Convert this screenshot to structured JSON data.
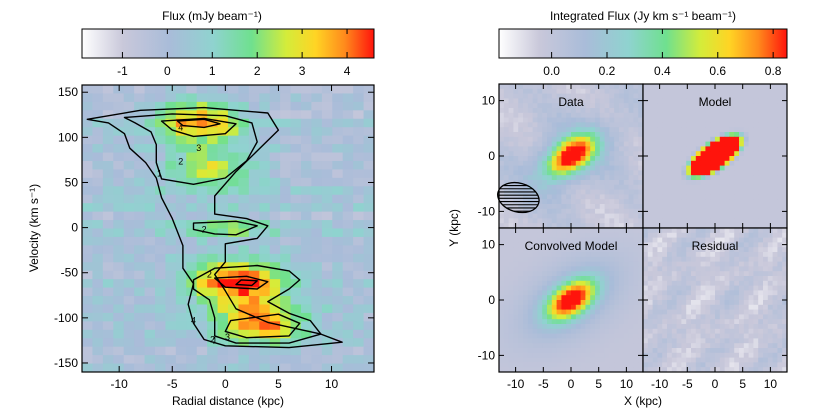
{
  "chart_data": [
    {
      "type": "heatmap",
      "panel": "position-velocity diagram",
      "colorbar": {
        "label": "Flux (mJy beam⁻¹)",
        "range": [
          -1.9,
          4.6
        ],
        "ticks": [
          "-1",
          "0",
          "1",
          "2",
          "3",
          "4"
        ],
        "tick_values": [
          -1,
          0,
          1,
          2,
          3,
          4
        ],
        "colormap": [
          "#ffffff",
          "#b8b8d0",
          "#9fc8d6",
          "#6fe08f",
          "#d4ec3a",
          "#ffcc22",
          "#ff7a1a",
          "#ff1a0e"
        ]
      },
      "xlabel": "Radial distance (kpc)",
      "ylabel": "Velocity (km s⁻¹)",
      "xlim": [
        -13.5,
        14
      ],
      "ylim": [
        -160,
        158
      ],
      "xticks": [
        "-10",
        "-5",
        "0",
        "5",
        "10"
      ],
      "xtick_values": [
        -10,
        -5,
        0,
        5,
        10
      ],
      "yticks": [
        "150",
        "100",
        "50",
        "0",
        "-50",
        "-100",
        "-150"
      ],
      "ytick_values": [
        150,
        100,
        50,
        0,
        -50,
        -100,
        -150
      ],
      "emission_components": [
        {
          "x": -2.3,
          "v": 118,
          "peak": 3.6
        },
        {
          "x": -1.5,
          "v": 65,
          "peak": 2.7
        },
        {
          "x": 0.0,
          "v": 0,
          "peak": 1.6
        },
        {
          "x": 1.2,
          "v": -60,
          "peak": 4.6
        },
        {
          "x": 3.3,
          "v": -105,
          "peak": 3.8
        }
      ],
      "contour_levels": [
        "1",
        "2",
        "3",
        "4"
      ]
    },
    {
      "type": "heatmap",
      "panel": "integrated flux maps",
      "colorbar": {
        "label": "Integrated Flux (Jy km s⁻¹ beam⁻¹)",
        "range": [
          -0.19,
          0.85
        ],
        "ticks": [
          "0.0",
          "0.2",
          "0.4",
          "0.6",
          "0.8"
        ],
        "tick_values": [
          0,
          0.2,
          0.4,
          0.6,
          0.8
        ],
        "colormap": [
          "#ffffff",
          "#b8b8d0",
          "#9fc8d6",
          "#6fe08f",
          "#d4ec3a",
          "#ffcc22",
          "#ff7a1a",
          "#ff1a0e"
        ]
      },
      "xlabel": "X (kpc)",
      "ylabel": "Y (kpc)",
      "xlim": [
        -13,
        13
      ],
      "ylim": [
        -13,
        13
      ],
      "xticks": [
        "-10",
        "-5",
        "0",
        "5",
        "10"
      ],
      "xtick_values": [
        -10,
        -5,
        0,
        5,
        10
      ],
      "yticks": [
        "10",
        "0",
        "-10"
      ],
      "ytick_values": [
        10,
        0,
        -10
      ],
      "panels": [
        {
          "title": "Data",
          "peak": 0.85,
          "beam": {
            "x": -9.5,
            "y": -7.5,
            "a": 3.8,
            "b": 2.6,
            "angle": 15
          }
        },
        {
          "title": "Model",
          "peak": 0.85
        },
        {
          "title": "Convolved Model",
          "peak": 0.85
        },
        {
          "title": "Residual",
          "peak": 0.0
        }
      ]
    }
  ]
}
